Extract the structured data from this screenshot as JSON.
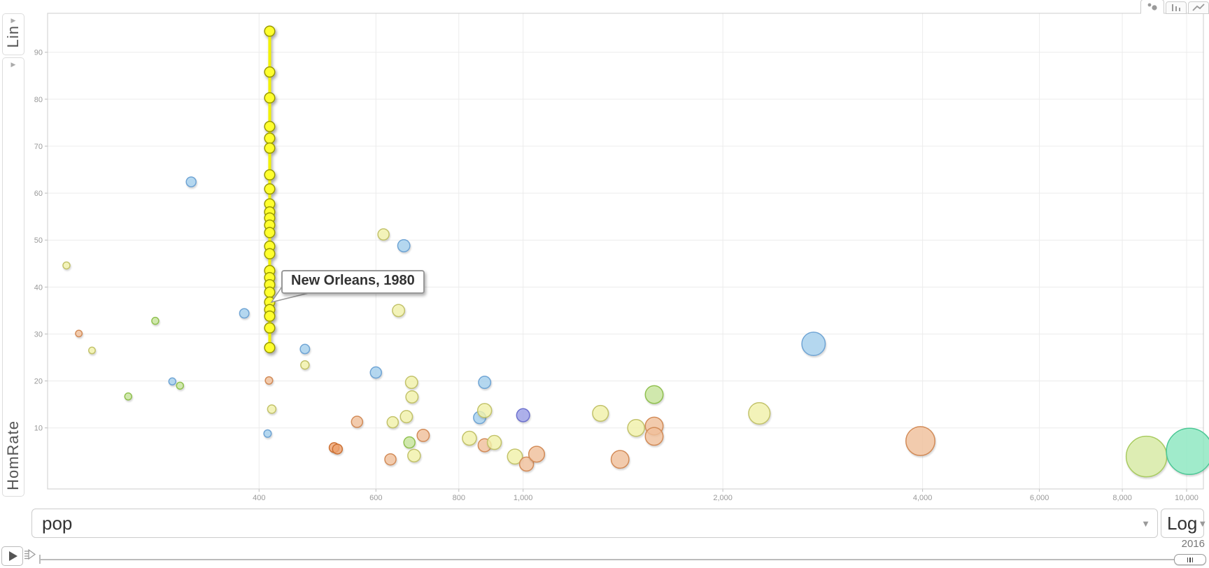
{
  "controls": {
    "y_scale_label": "Lin",
    "y_variable_label": "HomRate",
    "x_variable_label": "pop",
    "x_scale_label": "Log",
    "year_label": "2016",
    "tabs": [
      {
        "id": "scatter",
        "icon": "scatter-chart-icon",
        "active": true
      },
      {
        "id": "bar",
        "icon": "bar-chart-icon",
        "active": false
      },
      {
        "id": "line",
        "icon": "line-chart-icon",
        "active": false
      }
    ]
  },
  "tooltip": {
    "text": "New Orleans, 1980"
  },
  "chart_data": {
    "type": "scatter",
    "x_axis": {
      "label": "pop",
      "scale": "log",
      "min": 192,
      "max": 10600,
      "ticks": [
        {
          "v": 400,
          "label": "400"
        },
        {
          "v": 600,
          "label": "600"
        },
        {
          "v": 800,
          "label": "800"
        },
        {
          "v": 1000,
          "label": "1,000"
        },
        {
          "v": 2000,
          "label": "2,000"
        },
        {
          "v": 4000,
          "label": "4,000"
        },
        {
          "v": 6000,
          "label": "6,000"
        },
        {
          "v": 8000,
          "label": "8,000"
        },
        {
          "v": 10000,
          "label": "10,000"
        }
      ]
    },
    "y_axis": {
      "label": "HomRate",
      "scale": "linear",
      "min": -3,
      "max": 98.3,
      "ticks": [
        {
          "v": 10,
          "label": "10"
        },
        {
          "v": 20,
          "label": "20"
        },
        {
          "v": 30,
          "label": "30"
        },
        {
          "v": 40,
          "label": "40"
        },
        {
          "v": 50,
          "label": "50"
        },
        {
          "v": 60,
          "label": "60"
        },
        {
          "v": 70,
          "label": "70"
        },
        {
          "v": 80,
          "label": "80"
        },
        {
          "v": 90,
          "label": "90"
        }
      ]
    },
    "palette": {
      "yellow_selected": {
        "fill": "#ffff2e",
        "stroke": "#9a9a00"
      },
      "yellow": {
        "fill": "#fafaaf",
        "stroke": "#c2c26a"
      },
      "blue": {
        "fill": "#a9d6f5",
        "stroke": "#6fa4d4"
      },
      "green": {
        "fill": "#cdeca0",
        "stroke": "#90c050"
      },
      "orange": {
        "fill": "#f9c7a0",
        "stroke": "#d28b58"
      },
      "orange_deep": {
        "fill": "#f6a873",
        "stroke": "#cc7033"
      },
      "purple": {
        "fill": "#a0a4ee",
        "stroke": "#6d71cd"
      },
      "mint": {
        "fill": "#90efc6",
        "stroke": "#4cc795"
      },
      "lime": {
        "fill": "#def2a8",
        "stroke": "#a9cb62"
      }
    },
    "selected_trail": {
      "label": "New Orleans, 1980",
      "pop": 415,
      "dot_radius": 7.3,
      "line_color": "#f2f200",
      "rates": [
        94.5,
        85.8,
        80.3,
        74.2,
        71.7,
        69.6,
        63.9,
        60.9,
        57.7,
        56.0,
        54.7,
        53.2,
        51.6,
        48.7,
        47.1,
        43.5,
        42.0,
        40.5,
        38.9,
        36.8,
        35.2,
        33.8,
        31.3,
        27.1
      ]
    },
    "bubbles": [
      {
        "pop": 205,
        "rate": 44.6,
        "r": 5.0,
        "color": "yellow"
      },
      {
        "pop": 214,
        "rate": 30.1,
        "r": 4.7,
        "color": "orange"
      },
      {
        "pop": 224,
        "rate": 26.5,
        "r": 4.7,
        "color": "yellow"
      },
      {
        "pop": 254,
        "rate": 16.7,
        "r": 5.0,
        "color": "green"
      },
      {
        "pop": 279,
        "rate": 32.8,
        "r": 5.0,
        "color": "green"
      },
      {
        "pop": 296,
        "rate": 19.9,
        "r": 5.0,
        "color": "blue"
      },
      {
        "pop": 304,
        "rate": 19.0,
        "r": 5.0,
        "color": "green"
      },
      {
        "pop": 316,
        "rate": 62.4,
        "r": 7.0,
        "color": "blue"
      },
      {
        "pop": 380,
        "rate": 34.4,
        "r": 6.7,
        "color": "blue"
      },
      {
        "pop": 412,
        "rate": 8.8,
        "r": 5.3,
        "color": "blue"
      },
      {
        "pop": 414,
        "rate": 20.1,
        "r": 5.3,
        "color": "orange"
      },
      {
        "pop": 418,
        "rate": 14.0,
        "r": 6.0,
        "color": "yellow"
      },
      {
        "pop": 469,
        "rate": 26.8,
        "r": 6.7,
        "color": "blue"
      },
      {
        "pop": 469,
        "rate": 23.4,
        "r": 6.0,
        "color": "yellow"
      },
      {
        "pop": 519,
        "rate": 5.8,
        "r": 7.0,
        "color": "orange_deep"
      },
      {
        "pop": 525,
        "rate": 5.5,
        "r": 7.0,
        "color": "orange_deep"
      },
      {
        "pop": 562,
        "rate": 11.3,
        "r": 8.0,
        "color": "orange"
      },
      {
        "pop": 600,
        "rate": 21.8,
        "r": 8.0,
        "color": "blue"
      },
      {
        "pop": 616,
        "rate": 51.2,
        "r": 8.0,
        "color": "yellow"
      },
      {
        "pop": 631,
        "rate": 3.3,
        "r": 8.0,
        "color": "orange"
      },
      {
        "pop": 636,
        "rate": 11.2,
        "r": 8.0,
        "color": "yellow"
      },
      {
        "pop": 649,
        "rate": 35.0,
        "r": 8.7,
        "color": "yellow"
      },
      {
        "pop": 661,
        "rate": 48.8,
        "r": 8.7,
        "color": "blue"
      },
      {
        "pop": 667,
        "rate": 12.4,
        "r": 8.7,
        "color": "yellow"
      },
      {
        "pop": 674,
        "rate": 6.9,
        "r": 8.0,
        "color": "green"
      },
      {
        "pop": 679,
        "rate": 19.7,
        "r": 8.7,
        "color": "yellow"
      },
      {
        "pop": 680,
        "rate": 16.6,
        "r": 8.7,
        "color": "yellow"
      },
      {
        "pop": 685,
        "rate": 4.1,
        "r": 9.0,
        "color": "yellow"
      },
      {
        "pop": 707,
        "rate": 8.4,
        "r": 8.7,
        "color": "orange"
      },
      {
        "pop": 830,
        "rate": 7.8,
        "r": 10.0,
        "color": "yellow"
      },
      {
        "pop": 860,
        "rate": 12.2,
        "r": 8.7,
        "color": "blue"
      },
      {
        "pop": 875,
        "rate": 19.7,
        "r": 8.7,
        "color": "blue"
      },
      {
        "pop": 875,
        "rate": 13.7,
        "r": 10.0,
        "color": "yellow"
      },
      {
        "pop": 875,
        "rate": 6.3,
        "r": 9.3,
        "color": "orange"
      },
      {
        "pop": 905,
        "rate": 6.9,
        "r": 10.0,
        "color": "yellow"
      },
      {
        "pop": 972,
        "rate": 3.9,
        "r": 10.7,
        "color": "yellow"
      },
      {
        "pop": 1000,
        "rate": 12.7,
        "r": 9.3,
        "color": "purple"
      },
      {
        "pop": 1012,
        "rate": 2.3,
        "r": 10.0,
        "color": "orange"
      },
      {
        "pop": 1048,
        "rate": 4.4,
        "r": 11.3,
        "color": "orange"
      },
      {
        "pop": 1308,
        "rate": 13.1,
        "r": 11.3,
        "color": "yellow"
      },
      {
        "pop": 1400,
        "rate": 3.3,
        "r": 12.7,
        "color": "orange"
      },
      {
        "pop": 1480,
        "rate": 10.0,
        "r": 12.0,
        "color": "yellow"
      },
      {
        "pop": 1576,
        "rate": 17.1,
        "r": 12.7,
        "color": "green"
      },
      {
        "pop": 1576,
        "rate": 10.4,
        "r": 12.7,
        "color": "orange"
      },
      {
        "pop": 1576,
        "rate": 8.2,
        "r": 12.7,
        "color": "orange"
      },
      {
        "pop": 2270,
        "rate": 13.1,
        "r": 15.3,
        "color": "yellow"
      },
      {
        "pop": 2740,
        "rate": 27.9,
        "r": 16.7,
        "color": "blue"
      },
      {
        "pop": 3970,
        "rate": 7.2,
        "r": 20.7,
        "color": "orange"
      },
      {
        "pop": 8700,
        "rate": 3.9,
        "r": 29.0,
        "color": "lime"
      },
      {
        "pop": 10100,
        "rate": 5.0,
        "r": 33.0,
        "color": "mint"
      }
    ]
  }
}
